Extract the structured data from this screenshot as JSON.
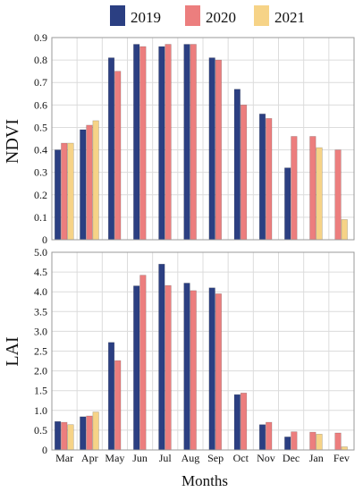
{
  "colors": {
    "2019": "#2b3f82",
    "2020": "#ec7e7e",
    "2021": "#f6d387",
    "grid": "#dcdcdc",
    "frame": "#9a9a9a"
  },
  "legend": [
    "2019",
    "2020",
    "2021"
  ],
  "xlabel": "Months",
  "categories": [
    "Mar",
    "Apr",
    "May",
    "Jun",
    "Jul",
    "Aug",
    "Sep",
    "Oct",
    "Nov",
    "Dec",
    "Jan",
    "Fev"
  ],
  "chart_data": [
    {
      "type": "bar",
      "ylabel": "NDVI",
      "ylim": [
        0,
        0.9
      ],
      "yticks": [
        "0",
        "0.1",
        "0.2",
        "0.3",
        "0.4",
        "0.5",
        "0.6",
        "0.7",
        "0.8",
        "0.9"
      ],
      "grid": true,
      "legend_position": "top-right",
      "series": [
        {
          "name": "2019",
          "values": [
            0.4,
            0.49,
            0.81,
            0.87,
            0.86,
            0.87,
            0.81,
            0.67,
            0.56,
            0.32,
            null,
            null
          ]
        },
        {
          "name": "2020",
          "values": [
            0.43,
            0.51,
            0.75,
            0.86,
            0.87,
            0.87,
            0.8,
            0.6,
            0.54,
            0.46,
            0.46,
            0.4
          ]
        },
        {
          "name": "2021",
          "values": [
            0.43,
            0.53,
            null,
            null,
            null,
            null,
            null,
            null,
            null,
            null,
            0.41,
            0.09
          ]
        }
      ]
    },
    {
      "type": "bar",
      "ylabel": "LAI",
      "ylim": [
        0,
        5.0
      ],
      "yticks": [
        "0",
        "0.5",
        "1.0",
        "1.5",
        "2.0",
        "2.5",
        "3.0",
        "3.5",
        "4.0",
        "4.5",
        "5.0"
      ],
      "grid": true,
      "series": [
        {
          "name": "2019",
          "values": [
            0.72,
            0.84,
            2.72,
            4.15,
            4.7,
            4.22,
            4.1,
            1.4,
            0.64,
            0.33,
            null,
            null
          ]
        },
        {
          "name": "2020",
          "values": [
            0.7,
            0.86,
            2.26,
            4.42,
            4.16,
            4.03,
            3.95,
            1.44,
            0.7,
            0.46,
            0.45,
            0.43
          ]
        },
        {
          "name": "2021",
          "values": [
            0.64,
            0.96,
            null,
            null,
            null,
            null,
            null,
            null,
            null,
            null,
            0.4,
            0.08
          ]
        }
      ]
    }
  ]
}
